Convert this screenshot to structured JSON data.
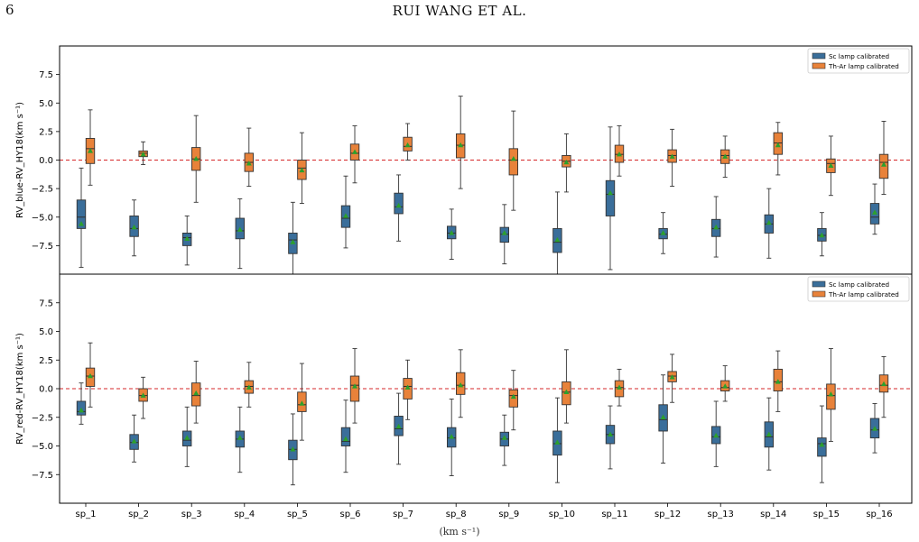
{
  "header": {
    "page_number": "6",
    "running_title": "RUI WANG ET AL."
  },
  "colors": {
    "sc": "#3a6e9a",
    "thar": "#e8823a",
    "median": "#2f2f2f",
    "mean": "#2ca02c",
    "zero_line": "#d62728"
  },
  "caption_fragment": "(km s⁻¹)",
  "chart_data": [
    {
      "type": "box",
      "ylabel": "RV_blue-RV_HY18(km s⁻¹)",
      "ylim": [
        -10,
        10
      ],
      "yticks": [
        -7.5,
        -5.0,
        -2.5,
        0.0,
        2.5,
        5.0,
        7.5
      ],
      "ytick_labels": [
        "−7.5",
        "−5.0",
        "−2.5",
        "0.0",
        "2.5",
        "5.0",
        "7.5"
      ],
      "reference_line": 0.0,
      "legend_position": "top-right",
      "categories": [
        "sp_1",
        "sp_2",
        "sp_3",
        "sp_4",
        "sp_5",
        "sp_6",
        "sp_7",
        "sp_8",
        "sp_9",
        "sp_10",
        "sp_11",
        "sp_12",
        "sp_13",
        "sp_14",
        "sp_15",
        "sp_16"
      ],
      "series": [
        {
          "name": "Sc lamp calibrated",
          "boxes": [
            {
              "wlo": -9.4,
              "q1": -6.0,
              "med": -5.0,
              "q3": -3.5,
              "whi": -0.7,
              "mean": -5.6
            },
            {
              "wlo": -8.4,
              "q1": -6.7,
              "med": -6.0,
              "q3": -4.9,
              "whi": -3.5,
              "mean": -5.9
            },
            {
              "wlo": -9.2,
              "q1": -7.5,
              "med": -6.8,
              "q3": -6.4,
              "whi": -4.9,
              "mean": -6.9
            },
            {
              "wlo": -9.5,
              "q1": -6.9,
              "med": -6.2,
              "q3": -5.1,
              "whi": -3.4,
              "mean": -6.1
            },
            {
              "wlo": -10.0,
              "q1": -8.2,
              "med": -7.0,
              "q3": -6.4,
              "whi": -3.7,
              "mean": -7.2
            },
            {
              "wlo": -7.7,
              "q1": -5.9,
              "med": -5.1,
              "q3": -4.0,
              "whi": -1.4,
              "mean": -4.9
            },
            {
              "wlo": -7.1,
              "q1": -4.7,
              "med": -4.1,
              "q3": -2.9,
              "whi": -1.3,
              "mean": -4.0
            },
            {
              "wlo": -8.7,
              "q1": -6.9,
              "med": -6.4,
              "q3": -5.8,
              "whi": -4.3,
              "mean": -6.4
            },
            {
              "wlo": -9.1,
              "q1": -7.2,
              "med": -6.5,
              "q3": -5.9,
              "whi": -3.9,
              "mean": -6.4
            },
            {
              "wlo": -10.0,
              "q1": -8.1,
              "med": -7.2,
              "q3": -6.0,
              "whi": -2.8,
              "mean": -7.0
            },
            {
              "wlo": -9.6,
              "q1": -4.9,
              "med": -3.0,
              "q3": -1.8,
              "whi": 2.9,
              "mean": -2.9
            },
            {
              "wlo": -8.2,
              "q1": -6.9,
              "med": -6.5,
              "q3": -6.0,
              "whi": -4.6,
              "mean": -6.4
            },
            {
              "wlo": -8.5,
              "q1": -6.7,
              "med": -6.0,
              "q3": -5.2,
              "whi": -3.2,
              "mean": -5.9
            },
            {
              "wlo": -8.6,
              "q1": -6.4,
              "med": -5.6,
              "q3": -4.8,
              "whi": -2.5,
              "mean": -5.5
            },
            {
              "wlo": -8.4,
              "q1": -7.1,
              "med": -6.6,
              "q3": -6.0,
              "whi": -4.6,
              "mean": -6.6
            },
            {
              "wlo": -6.5,
              "q1": -5.6,
              "med": -5.0,
              "q3": -3.8,
              "whi": -2.1,
              "mean": -4.6
            }
          ]
        },
        {
          "name": "Th-Ar lamp calibrated",
          "boxes": [
            {
              "wlo": -2.2,
              "q1": -0.3,
              "med": 1.0,
              "q3": 1.9,
              "whi": 4.4,
              "mean": 0.8
            },
            {
              "wlo": -0.4,
              "q1": 0.3,
              "med": 0.6,
              "q3": 0.8,
              "whi": 1.6,
              "mean": 0.5
            },
            {
              "wlo": -3.7,
              "q1": -0.9,
              "med": 0.1,
              "q3": 1.1,
              "whi": 3.9,
              "mean": 0.1
            },
            {
              "wlo": -2.3,
              "q1": -1.0,
              "med": -0.2,
              "q3": 0.6,
              "whi": 2.8,
              "mean": -0.3
            },
            {
              "wlo": -3.8,
              "q1": -1.7,
              "med": -0.7,
              "q3": 0.0,
              "whi": 2.4,
              "mean": -0.9
            },
            {
              "wlo": -2.0,
              "q1": 0.0,
              "med": 0.6,
              "q3": 1.4,
              "whi": 3.0,
              "mean": 0.7
            },
            {
              "wlo": 0.0,
              "q1": 0.8,
              "med": 1.2,
              "q3": 2.0,
              "whi": 3.2,
              "mean": 1.3
            },
            {
              "wlo": -2.5,
              "q1": 0.2,
              "med": 1.3,
              "q3": 2.3,
              "whi": 5.6,
              "mean": 1.3
            },
            {
              "wlo": -4.4,
              "q1": -1.3,
              "med": 0.0,
              "q3": 1.0,
              "whi": 4.3,
              "mean": 0.1
            },
            {
              "wlo": -2.8,
              "q1": -0.6,
              "med": -0.1,
              "q3": 0.4,
              "whi": 2.3,
              "mean": -0.2
            },
            {
              "wlo": -1.4,
              "q1": -0.2,
              "med": 0.5,
              "q3": 1.3,
              "whi": 3.0,
              "mean": 0.5
            },
            {
              "wlo": -2.3,
              "q1": -0.2,
              "med": 0.4,
              "q3": 0.9,
              "whi": 2.7,
              "mean": 0.3
            },
            {
              "wlo": -1.5,
              "q1": -0.3,
              "med": 0.4,
              "q3": 0.9,
              "whi": 2.1,
              "mean": 0.3
            },
            {
              "wlo": -1.3,
              "q1": 0.5,
              "med": 1.5,
              "q3": 2.4,
              "whi": 3.3,
              "mean": 1.3
            },
            {
              "wlo": -3.1,
              "q1": -1.1,
              "med": -0.3,
              "q3": 0.1,
              "whi": 2.1,
              "mean": -0.5
            },
            {
              "wlo": -3.0,
              "q1": -1.6,
              "med": -0.2,
              "q3": 0.5,
              "whi": 3.4,
              "mean": -0.4
            }
          ]
        }
      ]
    },
    {
      "type": "box",
      "ylabel": "RV_red-RV_HY18(km s⁻¹)",
      "ylim": [
        -10,
        10
      ],
      "yticks": [
        -7.5,
        -5.0,
        -2.5,
        0.0,
        2.5,
        5.0,
        7.5
      ],
      "ytick_labels": [
        "−7.5",
        "−5.0",
        "−2.5",
        "0.0",
        "2.5",
        "5.0",
        "7.5"
      ],
      "reference_line": 0.0,
      "legend_position": "top-right",
      "categories": [
        "sp_1",
        "sp_2",
        "sp_3",
        "sp_4",
        "sp_5",
        "sp_6",
        "sp_7",
        "sp_8",
        "sp_9",
        "sp_10",
        "sp_11",
        "sp_12",
        "sp_13",
        "sp_14",
        "sp_15",
        "sp_16"
      ],
      "series": [
        {
          "name": "Sc lamp calibrated",
          "boxes": [
            {
              "wlo": -3.1,
              "q1": -2.3,
              "med": -2.0,
              "q3": -1.1,
              "whi": 0.5,
              "mean": -1.9
            },
            {
              "wlo": -6.4,
              "q1": -5.3,
              "med": -4.7,
              "q3": -4.0,
              "whi": -2.3,
              "mean": -4.6
            },
            {
              "wlo": -6.8,
              "q1": -5.0,
              "med": -4.5,
              "q3": -3.7,
              "whi": -1.6,
              "mean": -4.3
            },
            {
              "wlo": -7.3,
              "q1": -5.1,
              "med": -4.4,
              "q3": -3.7,
              "whi": -1.6,
              "mean": -4.3
            },
            {
              "wlo": -8.4,
              "q1": -6.2,
              "med": -5.3,
              "q3": -4.5,
              "whi": -2.2,
              "mean": -5.3
            },
            {
              "wlo": -7.3,
              "q1": -5.0,
              "med": -4.6,
              "q3": -3.4,
              "whi": -1.0,
              "mean": -4.4
            },
            {
              "wlo": -6.6,
              "q1": -4.1,
              "med": -3.5,
              "q3": -2.4,
              "whi": -0.4,
              "mean": -3.3
            },
            {
              "wlo": -7.6,
              "q1": -5.1,
              "med": -4.3,
              "q3": -3.4,
              "whi": -0.9,
              "mean": -4.2
            },
            {
              "wlo": -6.7,
              "q1": -5.0,
              "med": -4.4,
              "q3": -3.8,
              "whi": -2.3,
              "mean": -4.3
            },
            {
              "wlo": -8.2,
              "q1": -5.8,
              "med": -4.8,
              "q3": -3.7,
              "whi": -0.8,
              "mean": -4.7
            },
            {
              "wlo": -7.0,
              "q1": -4.8,
              "med": -4.0,
              "q3": -3.2,
              "whi": -1.5,
              "mean": -4.0
            },
            {
              "wlo": -6.5,
              "q1": -3.7,
              "med": -2.7,
              "q3": -1.4,
              "whi": 1.2,
              "mean": -2.5
            },
            {
              "wlo": -6.8,
              "q1": -4.8,
              "med": -4.2,
              "q3": -3.3,
              "whi": -1.1,
              "mean": -4.1
            },
            {
              "wlo": -7.1,
              "q1": -5.1,
              "med": -4.2,
              "q3": -2.9,
              "whi": -0.8,
              "mean": -4.0
            },
            {
              "wlo": -8.2,
              "q1": -5.9,
              "med": -4.8,
              "q3": -4.3,
              "whi": -1.5,
              "mean": -4.9
            },
            {
              "wlo": -5.6,
              "q1": -4.3,
              "med": -3.6,
              "q3": -2.6,
              "whi": -1.3,
              "mean": -3.5
            }
          ]
        },
        {
          "name": "Th-Ar lamp calibrated",
          "boxes": [
            {
              "wlo": -1.6,
              "q1": 0.2,
              "med": 1.1,
              "q3": 1.8,
              "whi": 4.0,
              "mean": 1.1
            },
            {
              "wlo": -2.6,
              "q1": -1.1,
              "med": -0.6,
              "q3": 0.0,
              "whi": 1.0,
              "mean": -0.6
            },
            {
              "wlo": -3.0,
              "q1": -1.5,
              "med": -0.6,
              "q3": 0.5,
              "whi": 2.4,
              "mean": -0.4
            },
            {
              "wlo": -1.6,
              "q1": -0.4,
              "med": 0.2,
              "q3": 0.7,
              "whi": 2.3,
              "mean": 0.1
            },
            {
              "wlo": -4.5,
              "q1": -2.0,
              "med": -1.4,
              "q3": -0.3,
              "whi": 2.2,
              "mean": -1.3
            },
            {
              "wlo": -3.0,
              "q1": -1.1,
              "med": 0.3,
              "q3": 1.1,
              "whi": 3.5,
              "mean": 0.2
            },
            {
              "wlo": -2.7,
              "q1": -0.9,
              "med": 0.2,
              "q3": 0.9,
              "whi": 2.5,
              "mean": 0.1
            },
            {
              "wlo": -2.5,
              "q1": -0.5,
              "med": 0.3,
              "q3": 1.4,
              "whi": 3.4,
              "mean": 0.3
            },
            {
              "wlo": -3.6,
              "q1": -1.6,
              "med": -0.6,
              "q3": -0.1,
              "whi": 1.6,
              "mean": -0.7
            },
            {
              "wlo": -3.0,
              "q1": -1.4,
              "med": -0.3,
              "q3": 0.6,
              "whi": 3.4,
              "mean": -0.3
            },
            {
              "wlo": -1.5,
              "q1": -0.7,
              "med": 0.1,
              "q3": 0.7,
              "whi": 1.7,
              "mean": 0.1
            },
            {
              "wlo": -1.2,
              "q1": 0.6,
              "med": 1.1,
              "q3": 1.5,
              "whi": 3.0,
              "mean": 1.0
            },
            {
              "wlo": -1.1,
              "q1": -0.2,
              "med": 0.1,
              "q3": 0.7,
              "whi": 2.0,
              "mean": 0.2
            },
            {
              "wlo": -2.0,
              "q1": -0.2,
              "med": 0.6,
              "q3": 1.7,
              "whi": 3.3,
              "mean": 0.6
            },
            {
              "wlo": -4.6,
              "q1": -1.8,
              "med": -0.6,
              "q3": 0.4,
              "whi": 3.5,
              "mean": -0.5
            },
            {
              "wlo": -2.5,
              "q1": -0.3,
              "med": 0.3,
              "q3": 1.2,
              "whi": 2.8,
              "mean": 0.4
            }
          ]
        }
      ]
    }
  ]
}
